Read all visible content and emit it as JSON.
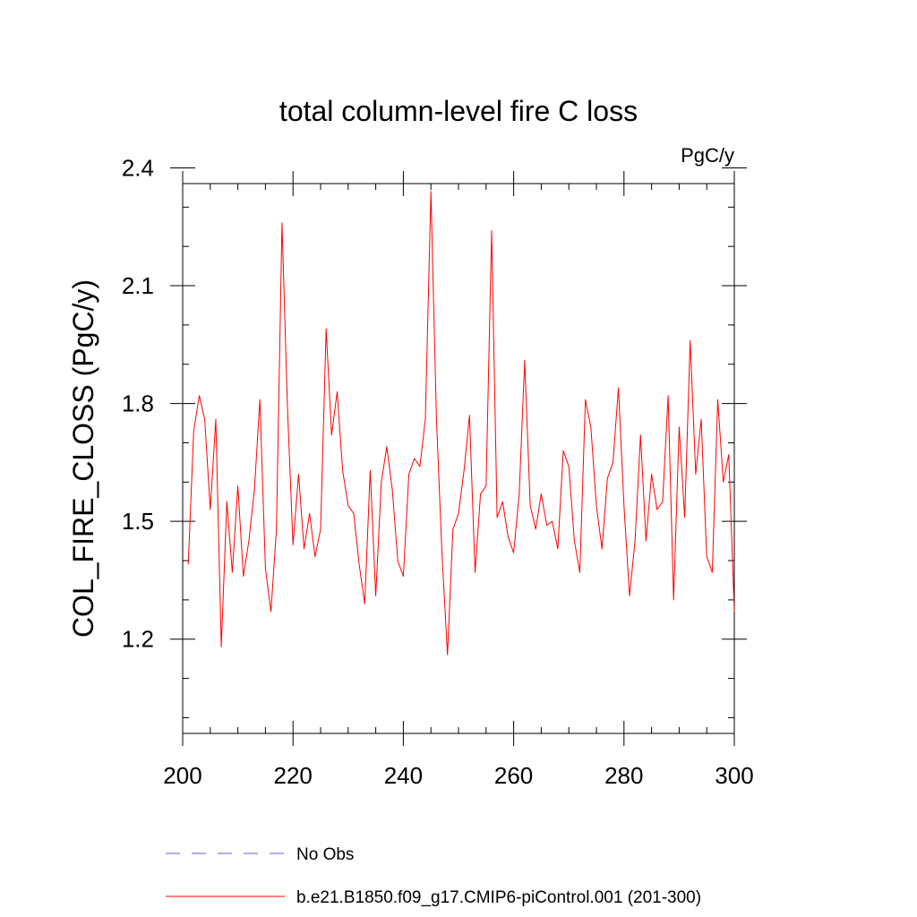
{
  "chart_data": {
    "type": "line",
    "title": "total column-level fire C loss",
    "units": "PgC/y",
    "xlabel": "",
    "ylabel": "COL_FIRE_CLOSS  (PgC/y)",
    "xlim": [
      200,
      300
    ],
    "ylim": [
      0.96,
      2.36
    ],
    "xticks": [
      200,
      220,
      240,
      260,
      280,
      300
    ],
    "yticks": [
      1.2,
      1.5,
      1.8,
      2.1,
      2.4
    ],
    "ytick_labels": [
      "1.2",
      "1.5",
      "1.8",
      "2.1",
      "2.4"
    ],
    "x_minor_step": 5,
    "y_minor_step": 0.1,
    "grid": false,
    "legend": "bottom",
    "series": [
      {
        "name": "b.e21.B1850.f09_g17.CMIP6-piControl.001 (201-300)",
        "color": "#ff0000",
        "style": "solid",
        "x": [
          201,
          202,
          203,
          204,
          205,
          206,
          207,
          208,
          209,
          210,
          211,
          212,
          213,
          214,
          215,
          216,
          217,
          218,
          219,
          220,
          221,
          222,
          223,
          224,
          225,
          226,
          227,
          228,
          229,
          230,
          231,
          232,
          233,
          234,
          235,
          236,
          237,
          238,
          239,
          240,
          241,
          242,
          243,
          244,
          245,
          246,
          247,
          248,
          249,
          250,
          251,
          252,
          253,
          254,
          255,
          256,
          257,
          258,
          259,
          260,
          261,
          262,
          263,
          264,
          265,
          266,
          267,
          268,
          269,
          270,
          271,
          272,
          273,
          274,
          275,
          276,
          277,
          278,
          279,
          280,
          281,
          282,
          283,
          284,
          285,
          286,
          287,
          288,
          289,
          290,
          291,
          292,
          293,
          294,
          295,
          296,
          297,
          298,
          299,
          300
        ],
        "values": [
          1.39,
          1.73,
          1.82,
          1.76,
          1.53,
          1.76,
          1.18,
          1.55,
          1.37,
          1.59,
          1.36,
          1.45,
          1.58,
          1.81,
          1.38,
          1.27,
          1.48,
          2.26,
          1.79,
          1.44,
          1.62,
          1.43,
          1.52,
          1.41,
          1.48,
          1.99,
          1.72,
          1.83,
          1.63,
          1.54,
          1.52,
          1.39,
          1.29,
          1.63,
          1.31,
          1.6,
          1.69,
          1.58,
          1.4,
          1.36,
          1.62,
          1.66,
          1.64,
          1.76,
          2.34,
          1.76,
          1.42,
          1.16,
          1.48,
          1.52,
          1.63,
          1.77,
          1.37,
          1.57,
          1.59,
          2.24,
          1.51,
          1.55,
          1.46,
          1.42,
          1.57,
          1.91,
          1.54,
          1.48,
          1.57,
          1.49,
          1.5,
          1.43,
          1.68,
          1.64,
          1.45,
          1.37,
          1.81,
          1.74,
          1.54,
          1.43,
          1.61,
          1.65,
          1.84,
          1.54,
          1.31,
          1.45,
          1.72,
          1.45,
          1.62,
          1.53,
          1.55,
          1.82,
          1.3,
          1.74,
          1.51,
          1.96,
          1.62,
          1.76,
          1.41,
          1.37,
          1.81,
          1.6,
          1.67,
          1.27
        ]
      },
      {
        "name": "No Obs",
        "color": "#6a5acd",
        "style": "dashed",
        "x": [],
        "values": []
      }
    ]
  }
}
